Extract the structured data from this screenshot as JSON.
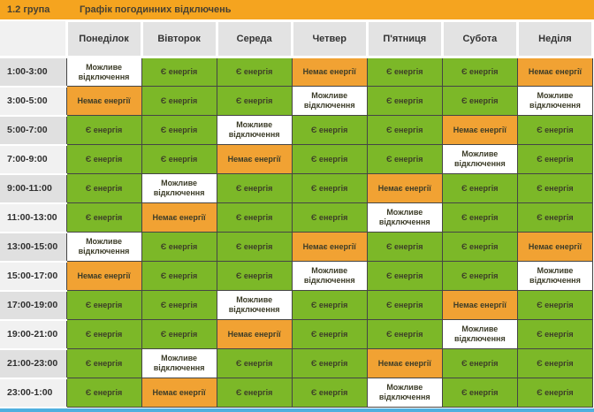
{
  "chart_data": {
    "type": "table",
    "group": "1.2 група",
    "title": "Графік погодинних відключень",
    "columns": [
      "Понеділок",
      "Вівторок",
      "Середа",
      "Четвер",
      "П'ятниця",
      "Субота",
      "Неділя"
    ],
    "legend": {
      "on": "Є енергія",
      "off": "Немає енергії",
      "maybe": "Можливе відключення"
    },
    "rows": [
      {
        "time": "1:00-3:00",
        "cells": [
          "maybe",
          "on",
          "on",
          "off",
          "on",
          "on",
          "off"
        ]
      },
      {
        "time": "3:00-5:00",
        "cells": [
          "off",
          "on",
          "on",
          "maybe",
          "on",
          "on",
          "maybe"
        ]
      },
      {
        "time": "5:00-7:00",
        "cells": [
          "on",
          "on",
          "maybe",
          "on",
          "on",
          "off",
          "on"
        ]
      },
      {
        "time": "7:00-9:00",
        "cells": [
          "on",
          "on",
          "off",
          "on",
          "on",
          "maybe",
          "on"
        ]
      },
      {
        "time": "9:00-11:00",
        "cells": [
          "on",
          "maybe",
          "on",
          "on",
          "off",
          "on",
          "on"
        ]
      },
      {
        "time": "11:00-13:00",
        "cells": [
          "on",
          "off",
          "on",
          "on",
          "maybe",
          "on",
          "on"
        ]
      },
      {
        "time": "13:00-15:00",
        "cells": [
          "maybe",
          "on",
          "on",
          "off",
          "on",
          "on",
          "off"
        ]
      },
      {
        "time": "15:00-17:00",
        "cells": [
          "off",
          "on",
          "on",
          "maybe",
          "on",
          "on",
          "maybe"
        ]
      },
      {
        "time": "17:00-19:00",
        "cells": [
          "on",
          "on",
          "maybe",
          "on",
          "on",
          "off",
          "on"
        ]
      },
      {
        "time": "19:00-21:00",
        "cells": [
          "on",
          "on",
          "off",
          "on",
          "on",
          "maybe",
          "on"
        ]
      },
      {
        "time": "21:00-23:00",
        "cells": [
          "on",
          "maybe",
          "on",
          "on",
          "off",
          "on",
          "on"
        ]
      },
      {
        "time": "23:00-1:00",
        "cells": [
          "on",
          "off",
          "on",
          "on",
          "maybe",
          "on",
          "on"
        ]
      }
    ]
  },
  "colors": {
    "top_bar": "#F5A41F",
    "cell_on": "#7CB828",
    "cell_off": "#F1A233",
    "cell_maybe": "#FFFFFF",
    "bottom_bar": "#4FB0DF"
  }
}
